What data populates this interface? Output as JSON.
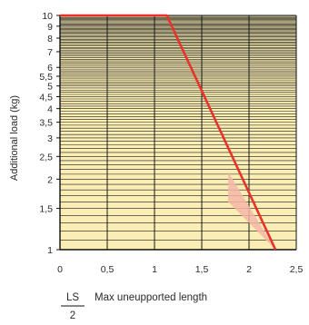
{
  "chart_data": {
    "type": "line",
    "ylabel": "Additional load (kg)",
    "xlabel_fraction": {
      "numerator": "LS",
      "denominator": "2"
    },
    "xlabel": "Max uneupported length",
    "y_scale": "log",
    "xlim": [
      0,
      2.5
    ],
    "ylim": [
      1,
      10
    ],
    "x_ticks": [
      "0",
      "0,5",
      "1",
      "1,5",
      "2",
      "2,5"
    ],
    "y_ticks": [
      "1",
      "1,5",
      "2",
      "2,5",
      "3",
      "3,5",
      "4",
      "4,5",
      "5",
      "5,5",
      "6",
      "7",
      "8",
      "9",
      "10"
    ],
    "grid": true,
    "colors": {
      "plot_background": "#fbeeb4",
      "grid": "#1a1a1a",
      "line": "#e8322a",
      "shading": "#f3b6a8"
    },
    "series": [
      {
        "x": [
          0,
          1.13,
          2.28
        ],
        "y": [
          10,
          10,
          1
        ]
      }
    ],
    "shaded_band": {
      "x": [
        1.78,
        2.28
      ],
      "y_low": [
        2.15,
        1
      ],
      "y_high": [
        1.6,
        1
      ]
    }
  }
}
